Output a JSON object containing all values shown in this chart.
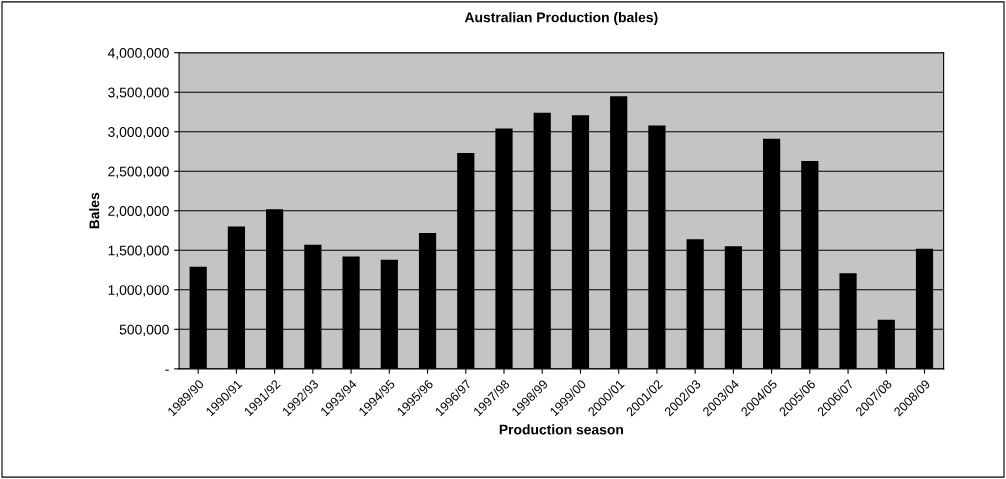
{
  "chart_data": {
    "type": "bar",
    "title": "Australian Production (bales)",
    "xlabel": "Production season",
    "ylabel": "Bales",
    "categories": [
      "1989/90",
      "1990/91",
      "1991/92",
      "1992/93",
      "1993/94",
      "1994/95",
      "1995/96",
      "1996/97",
      "1997/98",
      "1998/99",
      "1999/00",
      "2000/01",
      "2001/02",
      "2002/03",
      "2003/04",
      "2004/05",
      "2005/06",
      "2006/07",
      "2007/08",
      "2008/09"
    ],
    "values": [
      1290000,
      1800000,
      2020000,
      1570000,
      1420000,
      1380000,
      1720000,
      2730000,
      3040000,
      3240000,
      3210000,
      3450000,
      3080000,
      1640000,
      1550000,
      2910000,
      2630000,
      1210000,
      620000,
      1520000
    ],
    "color": "#000000",
    "ylim": [
      0,
      4000000
    ],
    "yticks": [
      {
        "value": 0,
        "label": "-"
      },
      {
        "value": 500000,
        "label": "500,000"
      },
      {
        "value": 1000000,
        "label": "1,000,000"
      },
      {
        "value": 1500000,
        "label": "1,500,000"
      },
      {
        "value": 2000000,
        "label": "2,000,000"
      },
      {
        "value": 2500000,
        "label": "2,500,000"
      },
      {
        "value": 3000000,
        "label": "3,000,000"
      },
      {
        "value": 3500000,
        "label": "3,500,000"
      },
      {
        "value": 4000000,
        "label": "4,000,000"
      }
    ],
    "grid": "y"
  }
}
